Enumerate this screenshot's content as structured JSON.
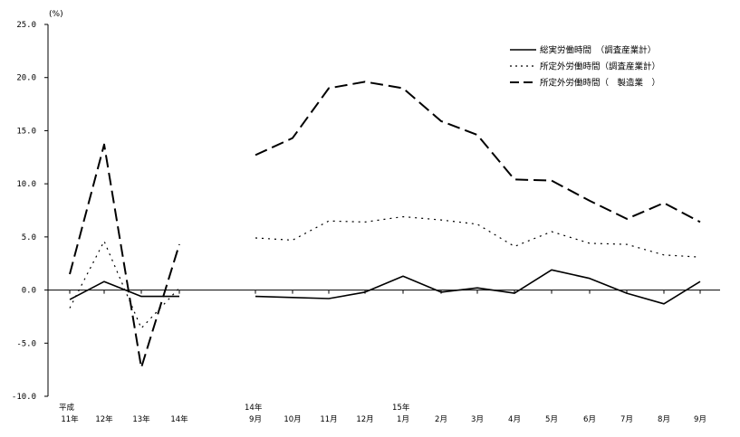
{
  "chart_data": {
    "type": "line",
    "unit_label": "(%)",
    "ylim": [
      -10,
      25
    ],
    "yticks": [
      "25.0",
      "20.0",
      "15.0",
      "10.0",
      "5.0",
      "0.0",
      "-5.0",
      "-10.0"
    ],
    "ytick_values": [
      25,
      20,
      15,
      10,
      5,
      0,
      -5,
      -10
    ],
    "groups": [
      {
        "categories": [
          {
            "top": "平成",
            "bottom": "11年"
          },
          {
            "top": "",
            "bottom": "12年"
          },
          {
            "top": "",
            "bottom": "13年"
          },
          {
            "top": "",
            "bottom": "14年"
          }
        ]
      },
      {
        "categories": [
          {
            "top": "14年",
            "bottom": "9月"
          },
          {
            "top": "",
            "bottom": "10月"
          },
          {
            "top": "",
            "bottom": "11月"
          },
          {
            "top": "",
            "bottom": "12月"
          },
          {
            "top": "15年",
            "bottom": "1月"
          },
          {
            "top": "",
            "bottom": "2月"
          },
          {
            "top": "",
            "bottom": "3月"
          },
          {
            "top": "",
            "bottom": "4月"
          },
          {
            "top": "",
            "bottom": "5月"
          },
          {
            "top": "",
            "bottom": "6月"
          },
          {
            "top": "",
            "bottom": "7月"
          },
          {
            "top": "",
            "bottom": "8月"
          },
          {
            "top": "",
            "bottom": "9月"
          }
        ]
      }
    ],
    "series": [
      {
        "name": "総実労働時間　（調査産業計）",
        "style": "solid",
        "color": "#000000",
        "values": [
          [
            -0.9,
            0.8,
            -0.6,
            -0.6
          ],
          [
            -0.6,
            -0.7,
            -0.8,
            -0.2,
            1.3,
            -0.2,
            0.2,
            -0.3,
            1.9,
            1.1,
            -0.3,
            -1.3,
            0.8
          ]
        ]
      },
      {
        "name": "所定外労働時間（調査産業計）",
        "style": "dotted",
        "color": "#000000",
        "values": [
          [
            -1.7,
            4.6,
            -3.6,
            0.2
          ],
          [
            4.9,
            4.7,
            6.5,
            6.4,
            6.9,
            6.6,
            6.2,
            4.1,
            5.5,
            4.4,
            4.3,
            3.3,
            3.1
          ]
        ]
      },
      {
        "name": "所定外労働時間（　製造業　）",
        "style": "dashed",
        "color": "#000000",
        "values": [
          [
            1.5,
            13.7,
            -7.3,
            4.3
          ],
          [
            12.7,
            14.3,
            19.0,
            19.6,
            19.0,
            15.9,
            14.6,
            10.4,
            10.3,
            8.4,
            6.7,
            8.2,
            6.4
          ]
        ]
      }
    ],
    "legend_position": "top-right",
    "grid": false
  }
}
